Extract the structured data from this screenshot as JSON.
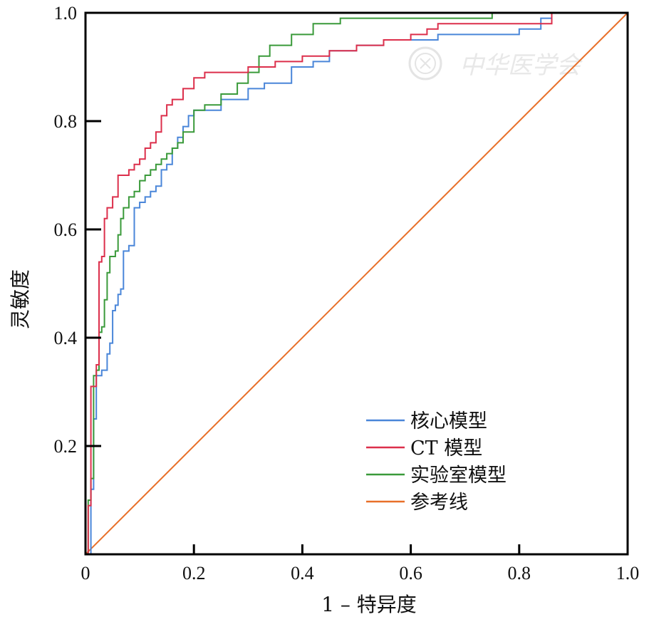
{
  "chart_data": {
    "type": "line",
    "title": "",
    "xlabel": "1 – 特异度",
    "ylabel": "灵敏度",
    "xlim": [
      0,
      1
    ],
    "ylim": [
      0,
      1
    ],
    "x_ticks": [
      "0",
      "0.2",
      "0.4",
      "0.6",
      "0.8",
      "1.0"
    ],
    "y_ticks": [
      "0.2",
      "0.4",
      "0.6",
      "0.8",
      "1.0"
    ],
    "grid": false,
    "legend_position": "bottom-right",
    "series": [
      {
        "name": "核心模型",
        "color": "#4a86d9",
        "step": true,
        "points": [
          [
            0,
            0
          ],
          [
            0.01,
            0.12
          ],
          [
            0.015,
            0.25
          ],
          [
            0.02,
            0.33
          ],
          [
            0.03,
            0.34
          ],
          [
            0.04,
            0.37
          ],
          [
            0.045,
            0.39
          ],
          [
            0.05,
            0.45
          ],
          [
            0.055,
            0.46
          ],
          [
            0.06,
            0.48
          ],
          [
            0.065,
            0.49
          ],
          [
            0.07,
            0.56
          ],
          [
            0.08,
            0.57
          ],
          [
            0.09,
            0.64
          ],
          [
            0.1,
            0.65
          ],
          [
            0.11,
            0.66
          ],
          [
            0.12,
            0.67
          ],
          [
            0.13,
            0.68
          ],
          [
            0.14,
            0.71
          ],
          [
            0.15,
            0.72
          ],
          [
            0.16,
            0.75
          ],
          [
            0.17,
            0.77
          ],
          [
            0.18,
            0.79
          ],
          [
            0.19,
            0.81
          ],
          [
            0.2,
            0.82
          ],
          [
            0.25,
            0.84
          ],
          [
            0.3,
            0.86
          ],
          [
            0.33,
            0.87
          ],
          [
            0.38,
            0.9
          ],
          [
            0.42,
            0.91
          ],
          [
            0.45,
            0.93
          ],
          [
            0.5,
            0.94
          ],
          [
            0.55,
            0.95
          ],
          [
            0.65,
            0.96
          ],
          [
            0.7,
            0.96
          ],
          [
            0.8,
            0.97
          ],
          [
            0.84,
            0.99
          ],
          [
            0.86,
            1.0
          ],
          [
            1.0,
            1.0
          ]
        ]
      },
      {
        "name": "CT 模型",
        "color": "#dc2f4b",
        "step": true,
        "points": [
          [
            0,
            0
          ],
          [
            0.005,
            0.09
          ],
          [
            0.01,
            0.31
          ],
          [
            0.02,
            0.35
          ],
          [
            0.025,
            0.54
          ],
          [
            0.03,
            0.55
          ],
          [
            0.035,
            0.62
          ],
          [
            0.04,
            0.64
          ],
          [
            0.05,
            0.66
          ],
          [
            0.06,
            0.7
          ],
          [
            0.07,
            0.7
          ],
          [
            0.08,
            0.71
          ],
          [
            0.09,
            0.72
          ],
          [
            0.1,
            0.73
          ],
          [
            0.11,
            0.75
          ],
          [
            0.12,
            0.76
          ],
          [
            0.13,
            0.78
          ],
          [
            0.14,
            0.81
          ],
          [
            0.15,
            0.83
          ],
          [
            0.16,
            0.84
          ],
          [
            0.18,
            0.86
          ],
          [
            0.2,
            0.88
          ],
          [
            0.22,
            0.89
          ],
          [
            0.3,
            0.9
          ],
          [
            0.35,
            0.91
          ],
          [
            0.4,
            0.92
          ],
          [
            0.45,
            0.93
          ],
          [
            0.5,
            0.94
          ],
          [
            0.55,
            0.95
          ],
          [
            0.6,
            0.96
          ],
          [
            0.63,
            0.97
          ],
          [
            0.65,
            0.98
          ],
          [
            0.86,
            1.0
          ],
          [
            1.0,
            1.0
          ]
        ]
      },
      {
        "name": "实验室模型",
        "color": "#3a9a3a",
        "step": true,
        "points": [
          [
            0,
            0
          ],
          [
            0.005,
            0.1
          ],
          [
            0.01,
            0.14
          ],
          [
            0.015,
            0.33
          ],
          [
            0.02,
            0.34
          ],
          [
            0.025,
            0.41
          ],
          [
            0.03,
            0.42
          ],
          [
            0.035,
            0.47
          ],
          [
            0.04,
            0.52
          ],
          [
            0.045,
            0.55
          ],
          [
            0.055,
            0.56
          ],
          [
            0.06,
            0.59
          ],
          [
            0.065,
            0.62
          ],
          [
            0.07,
            0.64
          ],
          [
            0.08,
            0.66
          ],
          [
            0.09,
            0.67
          ],
          [
            0.1,
            0.69
          ],
          [
            0.11,
            0.7
          ],
          [
            0.12,
            0.71
          ],
          [
            0.13,
            0.72
          ],
          [
            0.14,
            0.73
          ],
          [
            0.15,
            0.74
          ],
          [
            0.16,
            0.75
          ],
          [
            0.17,
            0.76
          ],
          [
            0.18,
            0.78
          ],
          [
            0.2,
            0.82
          ],
          [
            0.22,
            0.83
          ],
          [
            0.25,
            0.85
          ],
          [
            0.28,
            0.87
          ],
          [
            0.3,
            0.89
          ],
          [
            0.32,
            0.92
          ],
          [
            0.34,
            0.94
          ],
          [
            0.38,
            0.96
          ],
          [
            0.42,
            0.98
          ],
          [
            0.47,
            0.99
          ],
          [
            0.62,
            0.99
          ],
          [
            0.75,
            1.0
          ],
          [
            1.0,
            1.0
          ]
        ]
      },
      {
        "name": "参考线",
        "color": "#e8702a",
        "step": false,
        "points": [
          [
            0,
            0
          ],
          [
            1,
            1
          ]
        ]
      }
    ]
  }
}
